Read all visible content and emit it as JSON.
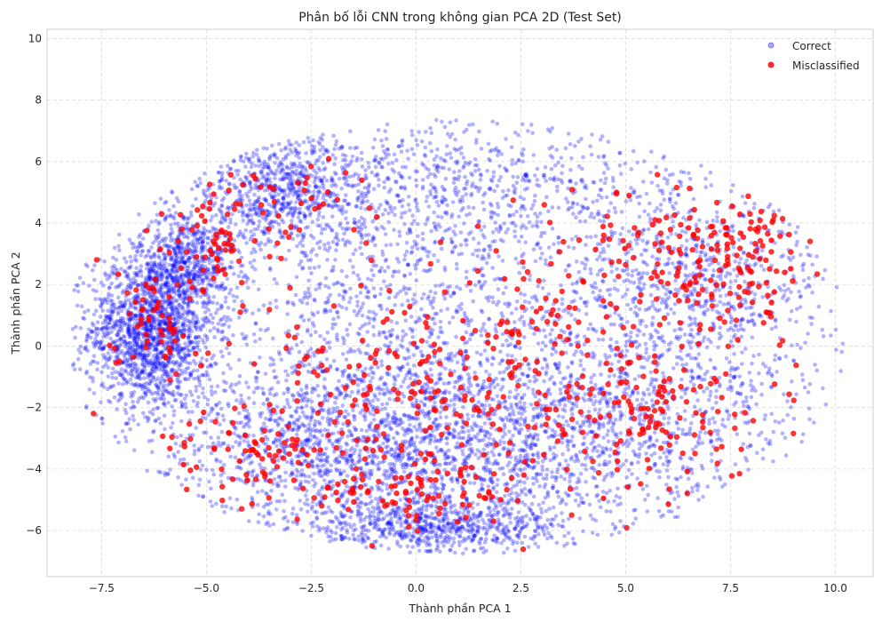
{
  "chart_data": {
    "type": "scatter",
    "title": "Phân bố lỗi CNN trong không gian PCA 2D (Test Set)",
    "xlabel": "Thành phần PCA 1",
    "ylabel": "Thành phần PCA 2",
    "xlim": [
      -8.8,
      10.9
    ],
    "ylim": [
      -7.5,
      10.3
    ],
    "x_ticks": [
      -7.5,
      -5.0,
      -2.5,
      0.0,
      2.5,
      5.0,
      7.5,
      10.0
    ],
    "x_tick_labels": [
      "−7.5",
      "−5.0",
      "−2.5",
      "0.0",
      "2.5",
      "5.0",
      "7.5",
      "10.0"
    ],
    "y_ticks": [
      -6,
      -4,
      -2,
      0,
      2,
      4,
      6,
      8,
      10
    ],
    "y_tick_labels": [
      "−6",
      "−4",
      "−2",
      "0",
      "2",
      "4",
      "6",
      "8",
      "10"
    ],
    "grid": true,
    "legend_position": "top-right",
    "series": [
      {
        "name": "Correct",
        "color": "#0000ff",
        "alpha": 0.3,
        "marker": "circle",
        "approx_count": 9000,
        "clusters": [
          {
            "cx": -6.3,
            "cy": 0.5,
            "sx": 0.75,
            "sy": 1.3,
            "weight": 0.18
          },
          {
            "cx": -5.4,
            "cy": 2.8,
            "sx": 0.6,
            "sy": 0.8,
            "weight": 0.06
          },
          {
            "cx": -3.2,
            "cy": 5.0,
            "sx": 1.2,
            "sy": 0.9,
            "weight": 0.08
          },
          {
            "cx": 0.5,
            "cy": -5.9,
            "sx": 1.6,
            "sy": 0.45,
            "weight": 0.07
          },
          {
            "cx": 1.0,
            "cy": -3.5,
            "sx": 3.0,
            "sy": 1.4,
            "weight": 0.17
          },
          {
            "cx": -2.5,
            "cy": -3.0,
            "sx": 2.0,
            "sy": 1.5,
            "weight": 0.08
          },
          {
            "cx": 0.0,
            "cy": 1.0,
            "sx": 2.4,
            "sy": 2.5,
            "weight": 0.14
          },
          {
            "cx": 1.5,
            "cy": 5.5,
            "sx": 2.5,
            "sy": 1.2,
            "weight": 0.06
          },
          {
            "cx": 6.5,
            "cy": 2.0,
            "sx": 1.8,
            "sy": 1.8,
            "weight": 0.1
          },
          {
            "cx": 5.5,
            "cy": -2.0,
            "sx": 2.0,
            "sy": 1.5,
            "weight": 0.06
          }
        ]
      },
      {
        "name": "Misclassified",
        "color": "#ff0000",
        "alpha": 0.8,
        "marker": "circle",
        "approx_count": 900,
        "clusters": [
          {
            "cx": -6.2,
            "cy": 0.8,
            "sx": 0.5,
            "sy": 1.0,
            "weight": 0.06
          },
          {
            "cx": -4.8,
            "cy": 3.2,
            "sx": 0.7,
            "sy": 0.9,
            "weight": 0.07
          },
          {
            "cx": -2.8,
            "cy": 5.0,
            "sx": 1.0,
            "sy": 0.7,
            "weight": 0.04
          },
          {
            "cx": -3.5,
            "cy": -3.5,
            "sx": 1.4,
            "sy": 0.9,
            "weight": 0.1
          },
          {
            "cx": 0.0,
            "cy": -1.5,
            "sx": 1.8,
            "sy": 1.8,
            "weight": 0.18
          },
          {
            "cx": 3.5,
            "cy": 0.5,
            "sx": 1.5,
            "sy": 2.0,
            "weight": 0.14
          },
          {
            "cx": 7.3,
            "cy": 3.0,
            "sx": 1.3,
            "sy": 1.3,
            "weight": 0.2
          },
          {
            "cx": 5.5,
            "cy": -2.5,
            "sx": 1.5,
            "sy": 1.2,
            "weight": 0.13
          },
          {
            "cx": 0.5,
            "cy": -4.8,
            "sx": 1.3,
            "sy": 0.6,
            "weight": 0.08
          }
        ]
      }
    ]
  }
}
